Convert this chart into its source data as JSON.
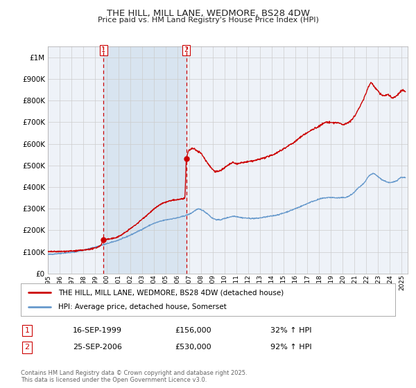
{
  "title": "THE HILL, MILL LANE, WEDMORE, BS28 4DW",
  "subtitle": "Price paid vs. HM Land Registry's House Price Index (HPI)",
  "legend_line1": "THE HILL, MILL LANE, WEDMORE, BS28 4DW (detached house)",
  "legend_line2": "HPI: Average price, detached house, Somerset",
  "footnote": "Contains HM Land Registry data © Crown copyright and database right 2025.\nThis data is licensed under the Open Government Licence v3.0.",
  "transaction1_date": "16-SEP-1999",
  "transaction1_price": "£156,000",
  "transaction1_hpi": "32% ↑ HPI",
  "transaction2_date": "25-SEP-2006",
  "transaction2_price": "£530,000",
  "transaction2_hpi": "92% ↑ HPI",
  "red_color": "#cc0000",
  "blue_color": "#6699cc",
  "bg_color": "#eef2f8",
  "highlight_color": "#d8e4f0",
  "grid_color": "#cccccc",
  "title_color": "#222222",
  "ylim": [
    0,
    1050000
  ],
  "yticks": [
    0,
    100000,
    200000,
    300000,
    400000,
    500000,
    600000,
    700000,
    800000,
    900000,
    1000000
  ],
  "ytick_labels": [
    "£0",
    "£100K",
    "£200K",
    "£300K",
    "£400K",
    "£500K",
    "£600K",
    "£700K",
    "£800K",
    "£900K",
    "£1M"
  ],
  "xmin": 1995.0,
  "xmax": 2025.5,
  "xticks": [
    1995,
    1996,
    1997,
    1998,
    1999,
    2000,
    2001,
    2002,
    2003,
    2004,
    2005,
    2006,
    2007,
    2008,
    2009,
    2010,
    2011,
    2012,
    2013,
    2014,
    2015,
    2016,
    2017,
    2018,
    2019,
    2020,
    2021,
    2022,
    2023,
    2024,
    2025
  ],
  "marker1_x": 1999.71,
  "marker1_y": 156000,
  "marker2_x": 2006.73,
  "marker2_y": 530000,
  "vline1_x": 1999.71,
  "vline2_x": 2006.73
}
